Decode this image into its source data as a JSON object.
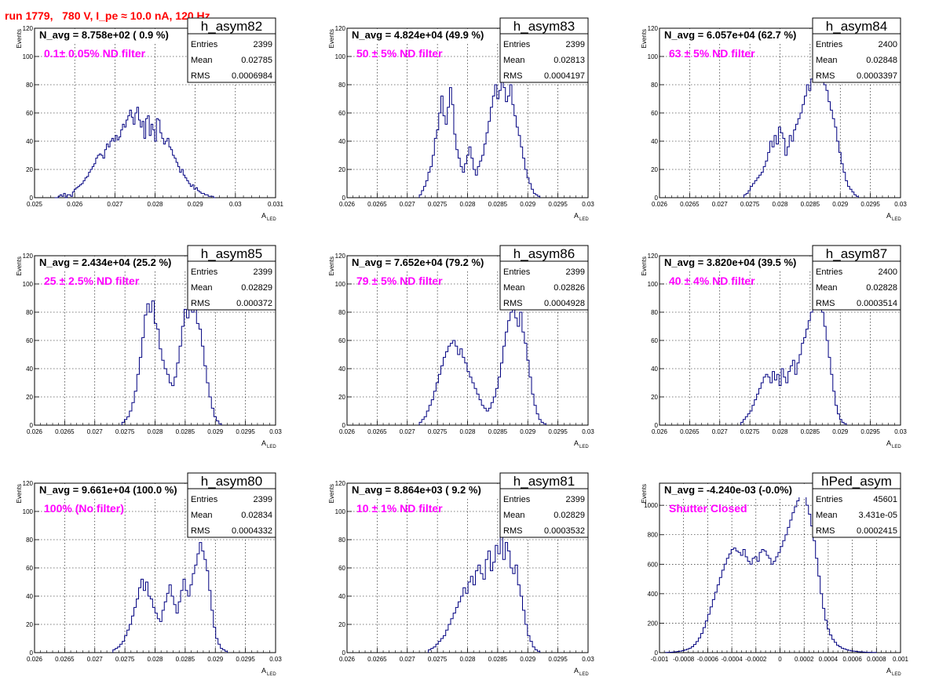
{
  "canvas_title": "run 1779,   780 V, I_pe ≈ 10.0 nA, 120 Hz",
  "colors": {
    "line": "#000080",
    "grid": "#000000",
    "label": "#ff00ff",
    "title": "#ff0000",
    "axis": "#000000"
  },
  "chart_data": [
    {
      "type": "histogram",
      "name": "h_asym82",
      "navg_text": "N_avg = 8.758e+02 ( 0.9 %)",
      "filter_text": "0.1± 0.05% ND filter",
      "stats": {
        "entries": "2399",
        "mean": "0.02785",
        "rms": "0.0006984"
      },
      "xlabel": "A",
      "xlabel_sub": "LED",
      "ylabel": "Events",
      "xlim": [
        0.025,
        0.031
      ],
      "ylim": [
        0,
        120
      ],
      "xticks": [
        "0.025",
        "0.026",
        "0.027",
        "0.028",
        "0.029",
        "0.03",
        "0.031"
      ],
      "yticks": [
        "0",
        "20",
        "40",
        "60",
        "80",
        "100",
        "120"
      ],
      "grid": true,
      "bins": {
        "x0": 0.0255,
        "x1": 0.0295,
        "values": [
          0,
          0,
          1,
          2,
          1,
          3,
          0,
          2,
          2,
          1,
          4,
          6,
          7,
          8,
          9,
          10,
          12,
          14,
          15,
          18,
          20,
          22,
          24,
          28,
          30,
          31,
          30,
          28,
          34,
          38,
          36,
          40,
          42,
          40,
          44,
          41,
          43,
          48,
          52,
          50,
          55,
          58,
          62,
          57,
          52,
          60,
          64,
          55,
          50,
          54,
          42,
          56,
          58,
          44,
          52,
          48,
          40,
          56,
          55,
          46,
          42,
          38,
          40,
          42,
          36,
          34,
          30,
          28,
          25,
          22,
          18,
          20,
          16,
          14,
          12,
          10,
          8,
          9,
          6,
          7,
          5,
          4,
          3,
          3,
          2,
          2,
          1,
          1,
          1,
          0
        ]
      }
    },
    {
      "type": "histogram",
      "name": "h_asym83",
      "navg_text": "N_avg = 4.824e+04 (49.9 %)",
      "filter_text": "50 ± 5% ND filter",
      "stats": {
        "entries": "2399",
        "mean": "0.02813",
        "rms": "0.0004197"
      },
      "xlabel": "A",
      "xlabel_sub": "LED",
      "ylabel": "Events",
      "xlim": [
        0.026,
        0.03
      ],
      "ylim": [
        0,
        120
      ],
      "xticks": [
        "0.026",
        "0.0265",
        "0.027",
        "0.0275",
        "0.028",
        "0.0285",
        "0.029",
        "0.0295",
        "0.03"
      ],
      "yticks": [
        "0",
        "20",
        "40",
        "60",
        "80",
        "100",
        "120"
      ],
      "grid": true,
      "bins": {
        "x0": 0.0272,
        "x1": 0.0292,
        "values": [
          2,
          5,
          8,
          12,
          18,
          22,
          30,
          42,
          48,
          60,
          72,
          58,
          52,
          64,
          78,
          66,
          45,
          34,
          28,
          22,
          18,
          24,
          30,
          36,
          28,
          20,
          16,
          22,
          26,
          30,
          38,
          46,
          54,
          64,
          72,
          80,
          70,
          76,
          103,
          78,
          68,
          72,
          80,
          66,
          58,
          50,
          44,
          36,
          28,
          20,
          14,
          10,
          6,
          3,
          2,
          1
        ]
      }
    },
    {
      "type": "histogram",
      "name": "h_asym84",
      "navg_text": "N_avg = 6.057e+04 (62.7 %)",
      "filter_text": "63 ± 5% ND filter",
      "stats": {
        "entries": "2400",
        "mean": "0.02848",
        "rms": "0.0003397"
      },
      "xlabel": "A",
      "xlabel_sub": "LED",
      "ylabel": "Events",
      "xlim": [
        0.026,
        0.03
      ],
      "ylim": [
        0,
        120
      ],
      "xticks": [
        "0.026",
        "0.0265",
        "0.027",
        "0.0275",
        "0.028",
        "0.0285",
        "0.029",
        "0.0295",
        "0.03"
      ],
      "yticks": [
        "0",
        "20",
        "40",
        "60",
        "80",
        "100",
        "120"
      ],
      "grid": true,
      "bins": {
        "x0": 0.0274,
        "x1": 0.0293,
        "values": [
          2,
          3,
          5,
          8,
          10,
          12,
          14,
          16,
          18,
          22,
          26,
          32,
          40,
          36,
          44,
          38,
          50,
          46,
          42,
          30,
          36,
          44,
          40,
          48,
          52,
          56,
          60,
          66,
          72,
          80,
          76,
          84,
          88,
          82,
          90,
          86,
          90,
          80,
          76,
          68,
          62,
          56,
          50,
          40,
          32,
          24,
          18,
          12,
          8,
          6,
          4,
          2,
          1
        ]
      }
    },
    {
      "type": "histogram",
      "name": "h_asym85",
      "navg_text": "N_avg = 2.434e+04 (25.2 %)",
      "filter_text": "25 ± 2.5% ND filter",
      "stats": {
        "entries": "2399",
        "mean": "0.02829",
        "rms": "0.000372"
      },
      "xlabel": "A",
      "xlabel_sub": "LED",
      "ylabel": "Events",
      "xlim": [
        0.026,
        0.03
      ],
      "ylim": [
        0,
        120
      ],
      "xticks": [
        "0.026",
        "0.0265",
        "0.027",
        "0.0275",
        "0.028",
        "0.0285",
        "0.029",
        "0.0295",
        "0.03"
      ],
      "yticks": [
        "0",
        "20",
        "40",
        "60",
        "80",
        "100",
        "120"
      ],
      "grid": true,
      "bins": {
        "x0": 0.02745,
        "x1": 0.0291,
        "values": [
          2,
          4,
          6,
          10,
          16,
          24,
          36,
          48,
          62,
          78,
          86,
          80,
          88,
          72,
          68,
          54,
          46,
          40,
          36,
          30,
          28,
          34,
          44,
          56,
          70,
          82,
          76,
          84,
          80,
          86,
          72,
          68,
          56,
          42,
          30,
          20,
          12,
          6,
          3,
          1
        ]
      }
    },
    {
      "type": "histogram",
      "name": "h_asym86",
      "navg_text": "N_avg = 7.652e+04 (79.2 %)",
      "filter_text": "79 ± 5% ND filter",
      "stats": {
        "entries": "2399",
        "mean": "0.02826",
        "rms": "0.0004928"
      },
      "xlabel": "A",
      "xlabel_sub": "LED",
      "ylabel": "Events",
      "xlim": [
        0.026,
        0.03
      ],
      "ylim": [
        0,
        120
      ],
      "xticks": [
        "0.026",
        "0.0265",
        "0.027",
        "0.0275",
        "0.028",
        "0.0285",
        "0.029",
        "0.0295",
        "0.03"
      ],
      "yticks": [
        "0",
        "20",
        "40",
        "60",
        "80",
        "100",
        "120"
      ],
      "grid": true,
      "bins": {
        "x0": 0.0272,
        "x1": 0.0293,
        "values": [
          2,
          4,
          6,
          10,
          14,
          18,
          24,
          30,
          36,
          42,
          48,
          52,
          56,
          58,
          60,
          56,
          50,
          54,
          48,
          44,
          38,
          34,
          30,
          26,
          22,
          18,
          14,
          12,
          10,
          12,
          16,
          20,
          26,
          34,
          44,
          56,
          66,
          74,
          80,
          88,
          76,
          70,
          80,
          66,
          58,
          46,
          34,
          22,
          14,
          8,
          4,
          2,
          1
        ]
      }
    },
    {
      "type": "histogram",
      "name": "h_asym87",
      "navg_text": "N_avg = 3.820e+04 (39.5 %)",
      "filter_text": "40 ± 4% ND filter",
      "stats": {
        "entries": "2400",
        "mean": "0.02828",
        "rms": "0.0003514"
      },
      "xlabel": "A",
      "xlabel_sub": "LED",
      "ylabel": "Events",
      "xlim": [
        0.026,
        0.03
      ],
      "ylim": [
        0,
        120
      ],
      "xticks": [
        "0.026",
        "0.0265",
        "0.027",
        "0.0275",
        "0.028",
        "0.0285",
        "0.029",
        "0.0295",
        "0.03"
      ],
      "yticks": [
        "0",
        "20",
        "40",
        "60",
        "80",
        "100",
        "120"
      ],
      "grid": true,
      "bins": {
        "x0": 0.02735,
        "x1": 0.0291,
        "values": [
          2,
          4,
          6,
          8,
          10,
          14,
          18,
          22,
          26,
          30,
          34,
          36,
          34,
          30,
          38,
          32,
          36,
          28,
          40,
          34,
          30,
          38,
          42,
          46,
          36,
          44,
          50,
          58,
          62,
          68,
          74,
          80,
          84,
          88,
          102,
          86,
          80,
          70,
          60,
          48,
          36,
          24,
          14,
          8,
          4,
          2,
          1
        ]
      }
    },
    {
      "type": "histogram",
      "name": "h_asym80",
      "navg_text": "N_avg = 9.661e+04 (100.0 %)",
      "filter_text": "100% (No filter)",
      "stats": {
        "entries": "2399",
        "mean": "0.02834",
        "rms": "0.0004332"
      },
      "xlabel": "A",
      "xlabel_sub": "LED",
      "ylabel": "Events",
      "xlim": [
        0.026,
        0.03
      ],
      "ylim": [
        0,
        120
      ],
      "xticks": [
        "0.026",
        "0.0265",
        "0.027",
        "0.0275",
        "0.028",
        "0.0285",
        "0.029",
        "0.0295",
        "0.03"
      ],
      "yticks": [
        "0",
        "20",
        "40",
        "60",
        "80",
        "100",
        "120"
      ],
      "grid": true,
      "bins": {
        "x0": 0.0273,
        "x1": 0.0292,
        "values": [
          2,
          3,
          4,
          6,
          8,
          12,
          16,
          20,
          26,
          32,
          38,
          46,
          52,
          44,
          50,
          40,
          38,
          32,
          28,
          24,
          22,
          30,
          36,
          42,
          48,
          40,
          34,
          28,
          36,
          44,
          52,
          44,
          40,
          48,
          56,
          62,
          70,
          78,
          72,
          66,
          58,
          44,
          30,
          18,
          10,
          6,
          3,
          2,
          1
        ]
      }
    },
    {
      "type": "histogram",
      "name": "h_asym81",
      "navg_text": "N_avg = 8.864e+03 ( 9.2 %)",
      "filter_text": "10 ± 1% ND filter",
      "stats": {
        "entries": "2399",
        "mean": "0.02829",
        "rms": "0.0003532"
      },
      "xlabel": "A",
      "xlabel_sub": "LED",
      "ylabel": "Events",
      "xlim": [
        0.026,
        0.03
      ],
      "ylim": [
        0,
        120
      ],
      "xticks": [
        "0.026",
        "0.0265",
        "0.027",
        "0.0275",
        "0.028",
        "0.0285",
        "0.029",
        "0.0295",
        "0.03"
      ],
      "yticks": [
        "0",
        "20",
        "40",
        "60",
        "80",
        "100",
        "120"
      ],
      "grid": true,
      "bins": {
        "x0": 0.02735,
        "x1": 0.0292,
        "values": [
          2,
          3,
          4,
          6,
          8,
          10,
          12,
          16,
          20,
          24,
          28,
          32,
          36,
          40,
          46,
          42,
          50,
          54,
          48,
          58,
          62,
          56,
          52,
          66,
          72,
          58,
          64,
          76,
          70,
          84,
          66,
          78,
          72,
          60,
          56,
          62,
          48,
          40,
          30,
          20,
          12,
          8,
          4,
          2,
          1
        ]
      }
    },
    {
      "type": "histogram",
      "name": "hPed_asym",
      "navg_text": "N_avg = -4.240e-03 (-0.0%)",
      "filter_text": "Shutter Closed",
      "stats": {
        "entries": "45601",
        "mean": "3.431e-05",
        "rms": "0.0002415"
      },
      "xlabel": "A",
      "xlabel_sub": "LED",
      "ylabel": "Events",
      "xlim": [
        -0.001,
        0.001
      ],
      "ylim": [
        0,
        1150
      ],
      "xticks": [
        "-0.001",
        "-0.0008",
        "-0.0006",
        "-0.0004",
        "-0.0002",
        "0",
        "0.0002",
        "0.0004",
        "0.0006",
        "0.0008",
        "0.001"
      ],
      "yticks": [
        "0",
        "200",
        "400",
        "600",
        "800",
        "1000"
      ],
      "grid": true,
      "bins": {
        "x0": -0.00095,
        "x1": 0.0008,
        "values": [
          1,
          2,
          3,
          4,
          6,
          8,
          10,
          14,
          18,
          24,
          30,
          40,
          55,
          75,
          100,
          130,
          170,
          215,
          260,
          310,
          360,
          410,
          460,
          510,
          560,
          600,
          640,
          670,
          700,
          710,
          690,
          680,
          660,
          700,
          650,
          620,
          600,
          640,
          650,
          620,
          680,
          700,
          690,
          660,
          640,
          600,
          620,
          650,
          680,
          720,
          760,
          800,
          850,
          900,
          950,
          990,
          1030,
          1060,
          1080,
          1060,
          1000,
          940,
          860,
          760,
          640,
          520,
          400,
          300,
          220,
          160,
          120,
          90,
          70,
          50,
          40,
          30,
          25,
          20,
          15,
          12,
          10,
          8,
          6,
          5,
          4,
          3,
          2,
          2,
          1,
          1
        ]
      }
    }
  ]
}
